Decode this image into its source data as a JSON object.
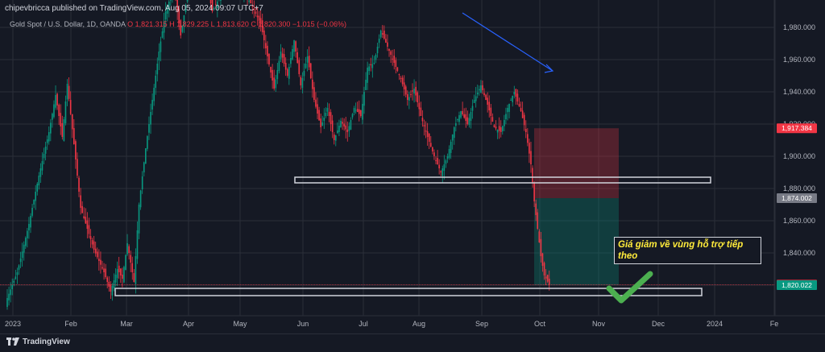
{
  "header": {
    "published_text": "chipevbricca published on TradingView.com, Aug 05, 2024 09:07 UTC+7"
  },
  "legend": {
    "symbol": "Gold Spot / U.S. Dollar, 1D, OANDA",
    "ohlc": "O 1,821.315  H 1,829.225  L 1,813.620  C 1,820.300  −1.015 (−0.06%)"
  },
  "footer": {
    "brand": "TradingView"
  },
  "annotation_text": "Giá giảm về vùng hỗ trợ tiếp theo",
  "colors": {
    "up": "#089981",
    "down": "#f23645",
    "background": "#151924",
    "grid": "#2a2e39",
    "arrow": "#2962ff",
    "check": "#4caf50"
  },
  "chart_data": {
    "type": "candlestick",
    "symbol": "XAUUSD",
    "timeframe": "1D",
    "y_ticks": [
      "1,980.000",
      "1,960.000",
      "1,940.000",
      "1,920.000",
      "1,900.000",
      "1,880.000",
      "1,860.000",
      "1,840.000",
      "1,820.000"
    ],
    "x_ticks": [
      "2023",
      "Feb",
      "Mar",
      "Apr",
      "May",
      "Jun",
      "Jul",
      "Aug",
      "Sep",
      "Oct",
      "Nov",
      "Dec",
      "2024",
      "Fe"
    ],
    "price_labels": [
      {
        "label": "1,917.384",
        "value": 1917.384,
        "color": "#f23645"
      },
      {
        "label": "1,874.002",
        "value": 1874.002,
        "color": "#787b86"
      },
      {
        "label": "1,820.300",
        "value": 1820.3,
        "color": "#f23645"
      },
      {
        "label": "1,820.022",
        "value": 1820.022,
        "color": "#089981"
      }
    ],
    "trend_points": [
      [
        0,
        1812
      ],
      [
        6,
        1828
      ],
      [
        13,
        1858
      ],
      [
        19,
        1888
      ],
      [
        25,
        1915
      ],
      [
        29,
        1938
      ],
      [
        33,
        1912
      ],
      [
        36,
        1945
      ],
      [
        41,
        1898
      ],
      [
        44,
        1868
      ],
      [
        48,
        1855
      ],
      [
        52,
        1842
      ],
      [
        58,
        1828
      ],
      [
        62,
        1816
      ],
      [
        66,
        1830
      ],
      [
        69,
        1824
      ],
      [
        72,
        1846
      ],
      [
        76,
        1822
      ],
      [
        79,
        1870
      ],
      [
        83,
        1905
      ],
      [
        87,
        1935
      ],
      [
        91,
        1965
      ],
      [
        95,
        1990
      ],
      [
        100,
        2005
      ],
      [
        104,
        1975
      ],
      [
        108,
        2000
      ],
      [
        113,
        2020
      ],
      [
        118,
        2015
      ],
      [
        123,
        1990
      ],
      [
        128,
        2000
      ],
      [
        134,
        2010
      ],
      [
        140,
        2005
      ],
      [
        146,
        1995
      ],
      [
        152,
        1982
      ],
      [
        156,
        1962
      ],
      [
        160,
        1942
      ],
      [
        164,
        1965
      ],
      [
        168,
        1950
      ],
      [
        172,
        1972
      ],
      [
        176,
        1944
      ],
      [
        180,
        1962
      ],
      [
        184,
        1935
      ],
      [
        188,
        1918
      ],
      [
        192,
        1930
      ],
      [
        196,
        1910
      ],
      [
        200,
        1922
      ],
      [
        204,
        1915
      ],
      [
        208,
        1930
      ],
      [
        212,
        1925
      ],
      [
        216,
        1955
      ],
      [
        220,
        1958
      ],
      [
        224,
        1978
      ],
      [
        228,
        1968
      ],
      [
        232,
        1958
      ],
      [
        236,
        1948
      ],
      [
        240,
        1935
      ],
      [
        244,
        1942
      ],
      [
        248,
        1925
      ],
      [
        252,
        1912
      ],
      [
        256,
        1900
      ],
      [
        260,
        1890
      ],
      [
        264,
        1900
      ],
      [
        268,
        1918
      ],
      [
        272,
        1928
      ],
      [
        276,
        1920
      ],
      [
        280,
        1935
      ],
      [
        284,
        1944
      ],
      [
        288,
        1932
      ],
      [
        292,
        1918
      ],
      [
        296,
        1915
      ],
      [
        300,
        1930
      ],
      [
        304,
        1940
      ],
      [
        308,
        1928
      ],
      [
        311,
        1915
      ],
      [
        314,
        1895
      ],
      [
        316,
        1872
      ],
      [
        318,
        1855
      ],
      [
        320,
        1838
      ],
      [
        322,
        1826
      ],
      [
        325,
        1820.3
      ]
    ],
    "zones": [
      {
        "name": "resistance-zone",
        "y_from": 1887,
        "y_to": 1884
      },
      {
        "name": "support-zone",
        "y_from": 1814,
        "y_to": 1818
      },
      {
        "name": "stop-zone",
        "y_from": 1917.384,
        "y_to": 1874.002
      },
      {
        "name": "target-zone",
        "y_from": 1874.002,
        "y_to": 1820.022
      }
    ]
  }
}
